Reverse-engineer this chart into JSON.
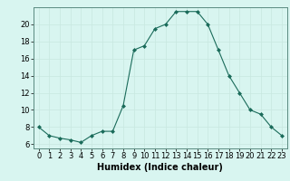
{
  "x": [
    0,
    1,
    2,
    3,
    4,
    5,
    6,
    7,
    8,
    9,
    10,
    11,
    12,
    13,
    14,
    15,
    16,
    17,
    18,
    19,
    20,
    21,
    22,
    23
  ],
  "y": [
    8,
    7,
    6.7,
    6.5,
    6.2,
    7,
    7.5,
    7.5,
    10.5,
    17,
    17.5,
    19.5,
    20,
    21.5,
    21.5,
    21.5,
    20,
    17,
    14,
    12,
    10,
    9.5,
    8,
    7
  ],
  "line_color": "#1a6b5a",
  "marker": "D",
  "marker_size": 2.0,
  "bg_color": "#d8f5f0",
  "grid_color_major": "#c8e8e0",
  "grid_color_minor": "#e0f5f0",
  "xlabel": "Humidex (Indice chaleur)",
  "xlabel_fontsize": 7,
  "tick_fontsize": 6,
  "xlim": [
    -0.5,
    23.5
  ],
  "ylim": [
    5.5,
    22.0
  ],
  "yticks": [
    6,
    8,
    10,
    12,
    14,
    16,
    18,
    20
  ],
  "xticks": [
    0,
    1,
    2,
    3,
    4,
    5,
    6,
    7,
    8,
    9,
    10,
    11,
    12,
    13,
    14,
    15,
    16,
    17,
    18,
    19,
    20,
    21,
    22,
    23
  ]
}
